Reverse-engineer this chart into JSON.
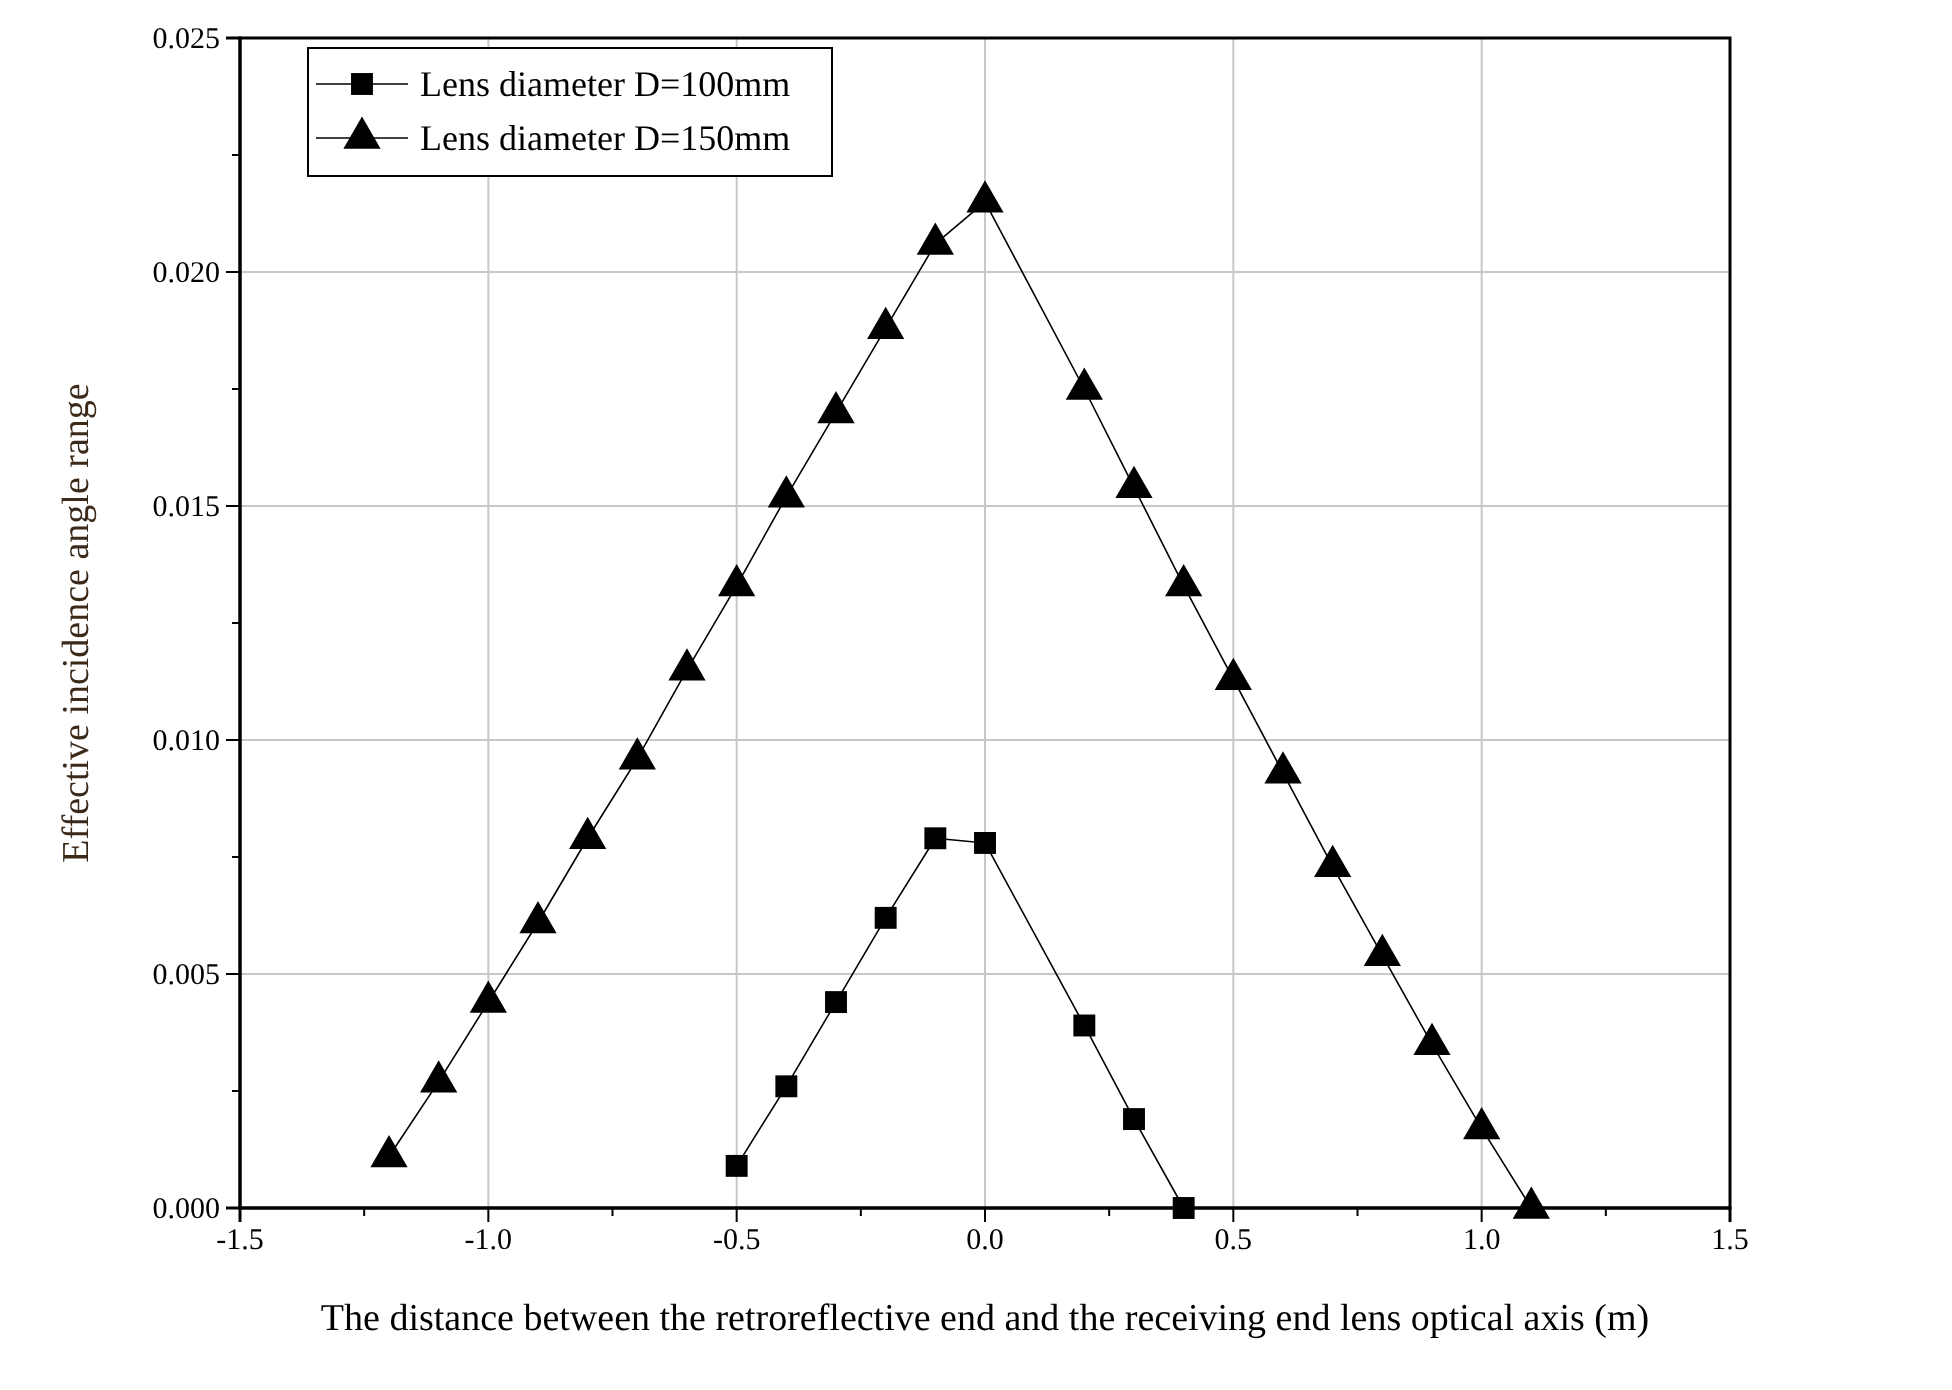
{
  "chart_data": {
    "type": "line",
    "xlabel": "The distance between the retroreflective end and the receiving end lens optical axis (m)",
    "ylabel": "Effective incidence angle range",
    "xlim": [
      -1.5,
      1.5
    ],
    "ylim": [
      0,
      0.025
    ],
    "xticks": [
      -1.5,
      {
        "value": -1.25,
        "label": null
      },
      {
        "value": -1.0,
        "label": "-1.0"
      },
      {
        "value": -0.75,
        "label": null
      },
      -0.5,
      {
        "value": -0.25,
        "label": null
      },
      {
        "value": 0,
        "label": "0.0"
      },
      {
        "value": 0.25,
        "label": null
      },
      0.5,
      {
        "value": 0.75,
        "label": null
      },
      {
        "value": 1.0,
        "label": "1.0"
      },
      {
        "value": 1.25,
        "label": null
      },
      1.5
    ],
    "yticks": [
      {
        "value": 0,
        "label": "0.000"
      },
      {
        "value": 0.0025,
        "label": null
      },
      {
        "value": 0.005,
        "label": "0.005"
      },
      {
        "value": 0.0075,
        "label": null
      },
      {
        "value": 0.01,
        "label": "0.010"
      },
      {
        "value": 0.0125,
        "label": null
      },
      {
        "value": 0.015,
        "label": "0.015"
      },
      {
        "value": 0.0175,
        "label": null
      },
      {
        "value": 0.02,
        "label": "0.020"
      },
      {
        "value": 0.0225,
        "label": null
      },
      {
        "value": 0.025,
        "label": "0.025"
      }
    ],
    "grid": true,
    "legend": "top left",
    "line_style": "solid",
    "series": [
      {
        "name": "Lens diameter D=100mm",
        "color": "#000000",
        "marker": "square",
        "x": [
          -0.5,
          -0.4,
          -0.3,
          -0.2,
          -0.1,
          0,
          0.2,
          0.3,
          0.4
        ],
        "values": [
          0.0009,
          0.0026,
          0.0044,
          0.0062,
          0.0079,
          0.0078,
          0.0039,
          0.0019,
          0.0
        ]
      },
      {
        "name": "Lens diameter D=150mm",
        "color": "#000000",
        "marker": "triangle",
        "x": [
          -1.2,
          -1.1,
          -1.0,
          -0.9,
          -0.8,
          -0.7,
          -0.6,
          -0.5,
          -0.4,
          -0.3,
          -0.2,
          -0.1,
          0,
          0.2,
          0.3,
          0.4,
          0.5,
          0.6,
          0.7,
          0.8,
          0.9,
          1.0,
          1.1
        ],
        "values": [
          0.0011,
          0.0027,
          0.0044,
          0.0061,
          0.0079,
          0.0096,
          0.0115,
          0.0133,
          0.0152,
          0.017,
          0.0188,
          0.0206,
          0.0215,
          0.0175,
          0.0154,
          0.0133,
          0.0113,
          0.0093,
          0.0073,
          0.0054,
          0.0035,
          0.0017,
          0.0
        ]
      }
    ]
  }
}
